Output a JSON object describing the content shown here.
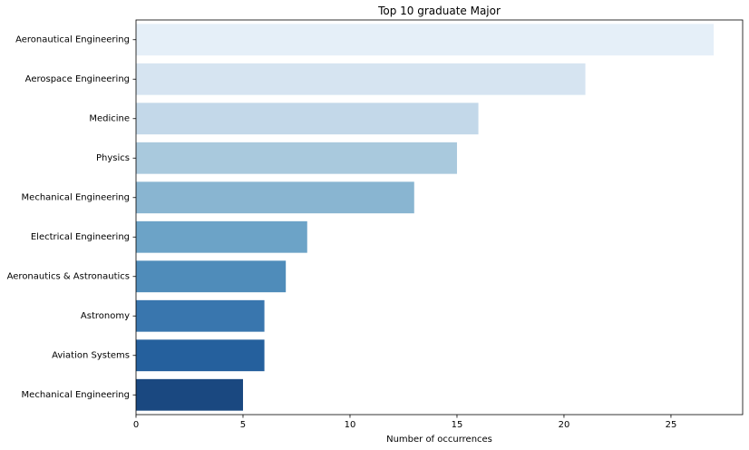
{
  "chart_data": {
    "type": "bar",
    "orientation": "horizontal",
    "title": "Top 10 graduate Major",
    "xlabel": "Number of occurrences",
    "ylabel": "",
    "categories": [
      "Aeronautical Engineering",
      "Aerospace Engineering",
      "Medicine",
      "Physics",
      "Mechanical Engineering",
      "Electrical Engineering",
      "Aeronautics & Astronautics",
      "Astronomy",
      "Aviation Systems",
      "Mechanical  Engineering"
    ],
    "values": [
      27,
      21,
      16,
      15,
      13,
      8,
      7,
      6,
      6,
      5
    ],
    "colors": [
      "#e5eff8",
      "#d6e4f1",
      "#c3d8e9",
      "#a9c9dd",
      "#89b5d1",
      "#6ca3c7",
      "#4f8cba",
      "#3976ae",
      "#25609d",
      "#1a4880"
    ],
    "xlim": [
      0,
      28.35
    ],
    "xticks": [
      0,
      5,
      10,
      15,
      20,
      25
    ],
    "grid": false,
    "legend": "none"
  }
}
